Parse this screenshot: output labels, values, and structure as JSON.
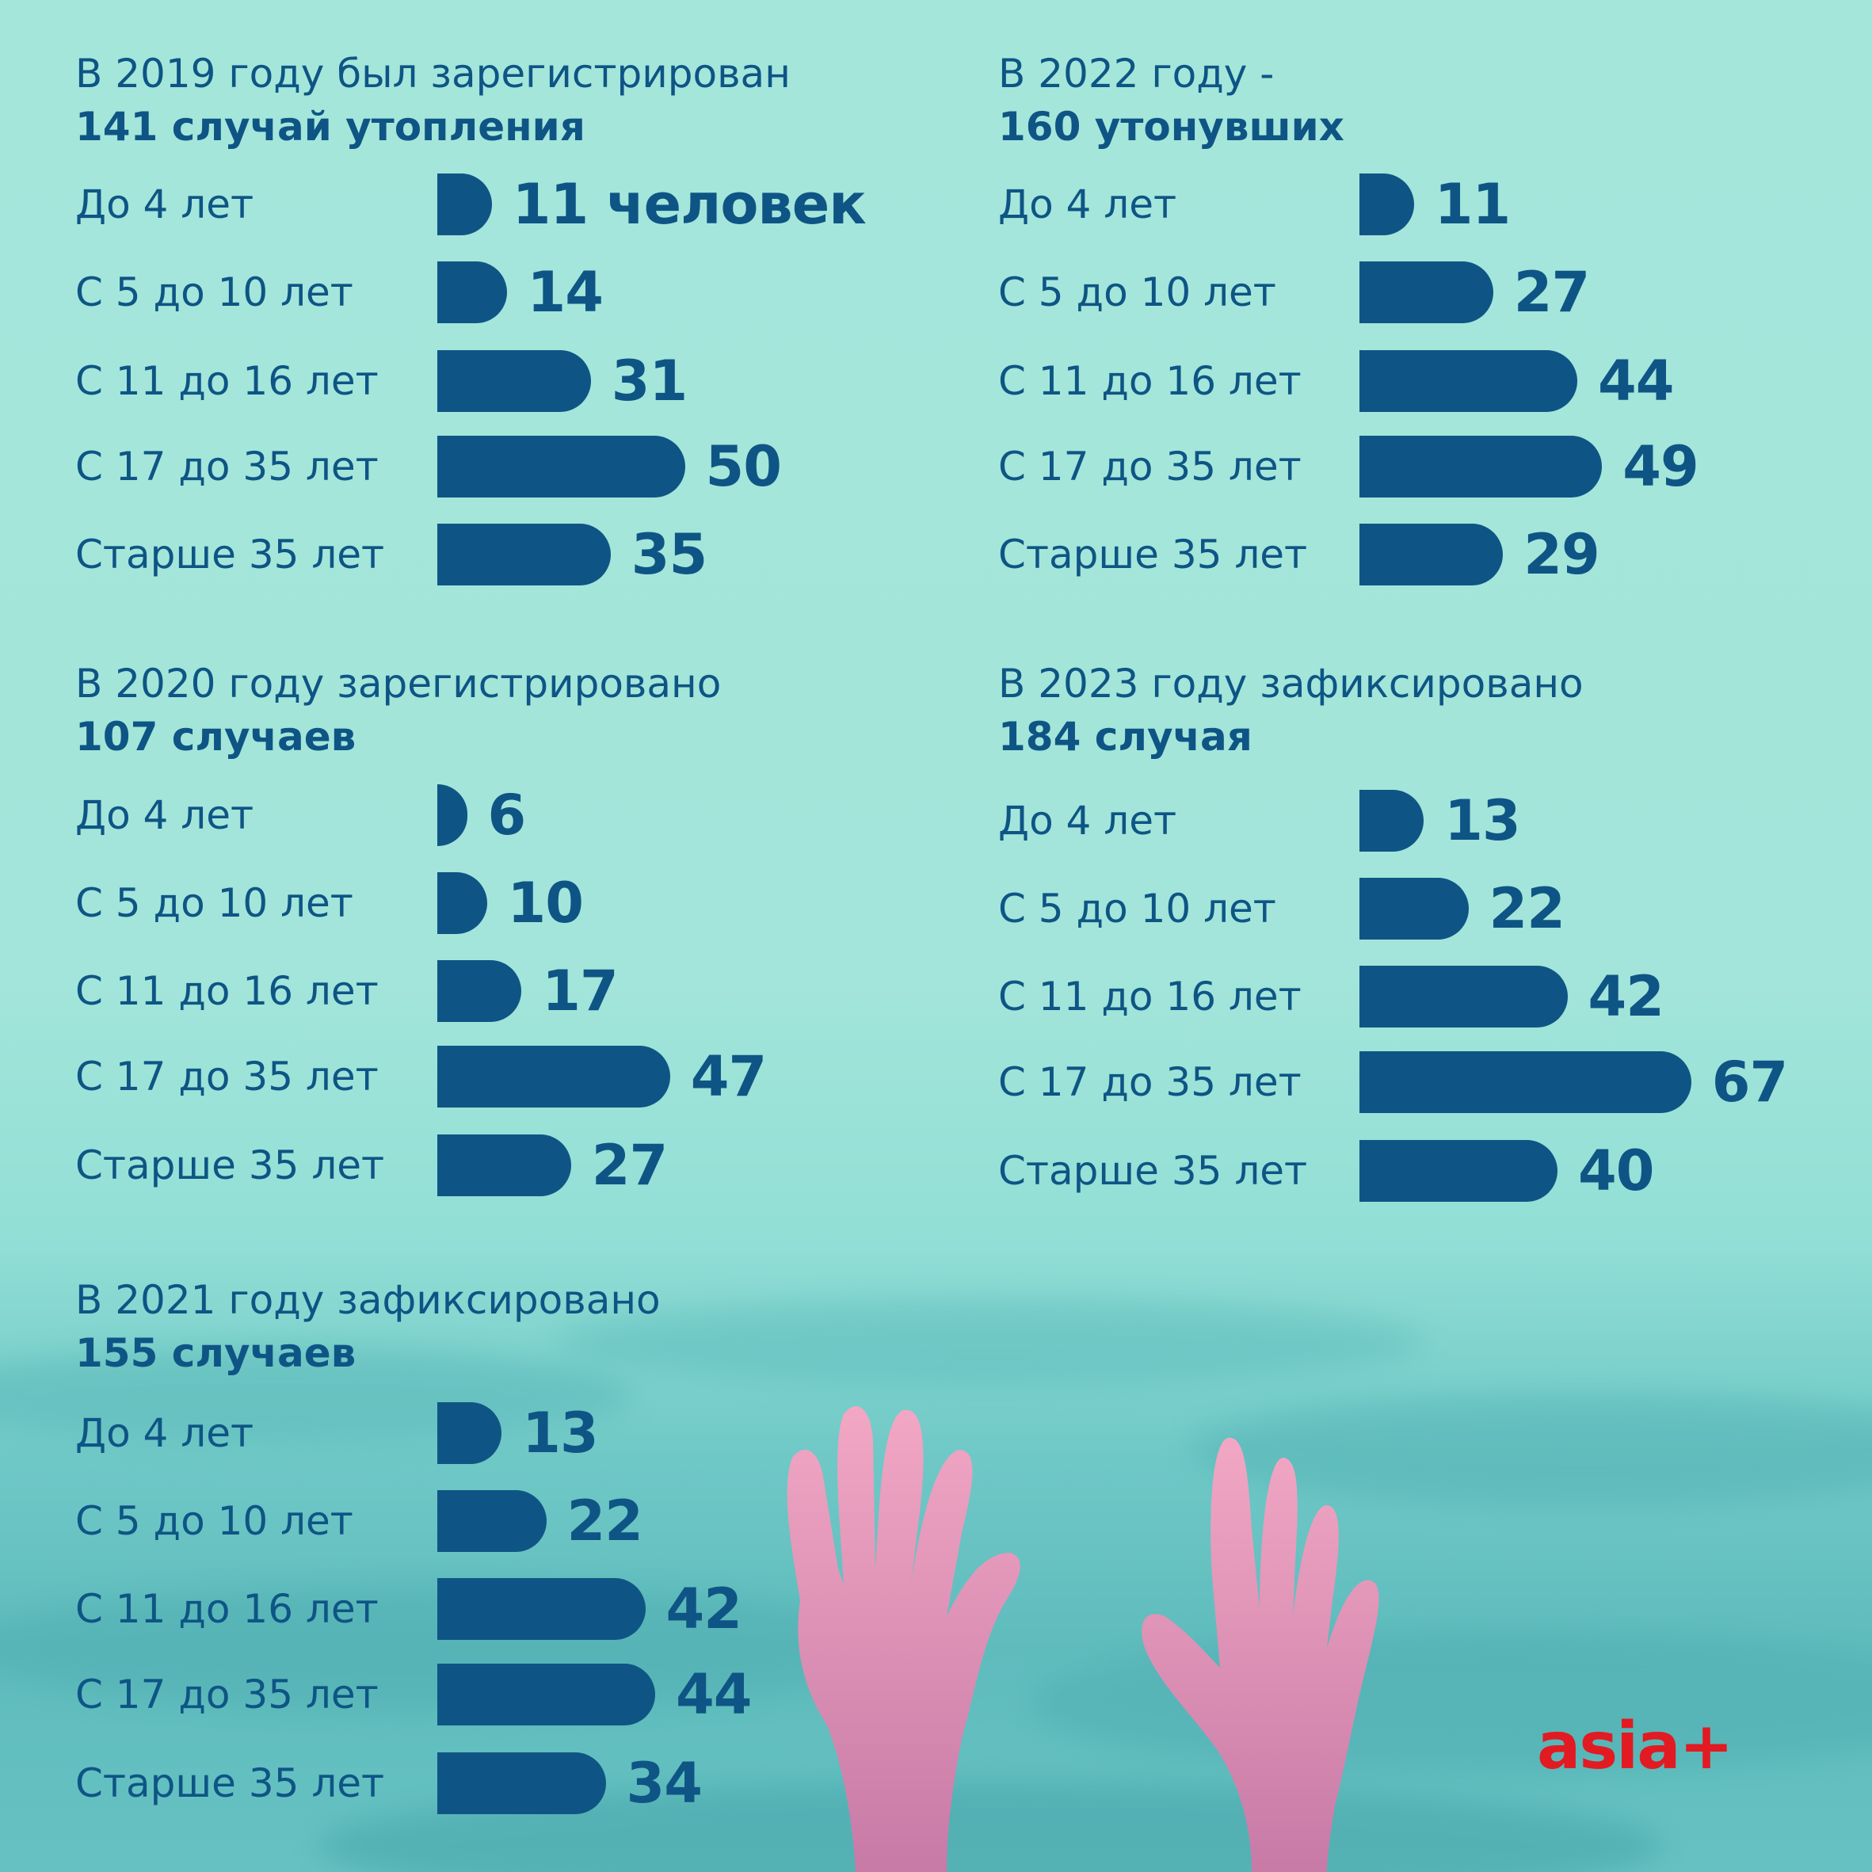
{
  "colors": {
    "bar": "#0e5585",
    "text": "#0e5585",
    "logo": "#e21a22",
    "background": "#a5e6db"
  },
  "logo": {
    "text": "asia+"
  },
  "chart_data": [
    {
      "type": "bar",
      "title": "В 2019 году был зарегистрирован",
      "subtitle": "141 случай утопления",
      "categories": [
        "До 4 лет",
        "С 5 до 10 лет",
        "С 11 до 16 лет",
        "С 17 до 35 лет",
        "Старше 35 лет"
      ],
      "values": [
        11,
        14,
        31,
        50,
        35
      ],
      "value_labels": [
        "11 человек",
        "14",
        "31",
        "50",
        "35"
      ]
    },
    {
      "type": "bar",
      "title": "В 2022 году -",
      "subtitle": "160 утонувших",
      "categories": [
        "До 4 лет",
        "С 5 до 10 лет",
        "С 11 до 16 лет",
        "С 17 до 35 лет",
        "Старше 35 лет"
      ],
      "values": [
        11,
        27,
        44,
        49,
        29
      ],
      "value_labels": [
        "11",
        "27",
        "44",
        "49",
        "29"
      ]
    },
    {
      "type": "bar",
      "title": "В 2020 году зарегистрировано",
      "subtitle": "107 случаев",
      "categories": [
        "До 4 лет",
        "С 5 до 10 лет",
        "С 11 до 16 лет",
        "С 17 до 35 лет",
        "Старше 35 лет"
      ],
      "values": [
        6,
        10,
        17,
        47,
        27
      ],
      "value_labels": [
        "6",
        "10",
        "17",
        "47",
        "27"
      ]
    },
    {
      "type": "bar",
      "title": "В 2023 году зафиксировано",
      "subtitle": "184 случая",
      "categories": [
        "До 4 лет",
        "С 5 до 10 лет",
        "С 11 до 16 лет",
        "С 17 до 35 лет",
        "Старше 35 лет"
      ],
      "values": [
        13,
        22,
        42,
        67,
        40
      ],
      "value_labels": [
        "13",
        "22",
        "42",
        "67",
        "40"
      ]
    },
    {
      "type": "bar",
      "title": "В 2021 году зафиксировано",
      "subtitle": "155 случаев",
      "categories": [
        "До 4 лет",
        "С 5 до 10 лет",
        "С 11 до 16 лет",
        "С 17 до 35 лет",
        "Старше 35 лет"
      ],
      "values": [
        13,
        22,
        42,
        44,
        34
      ],
      "value_labels": [
        "13",
        "22",
        "42",
        "44",
        "34"
      ]
    }
  ]
}
